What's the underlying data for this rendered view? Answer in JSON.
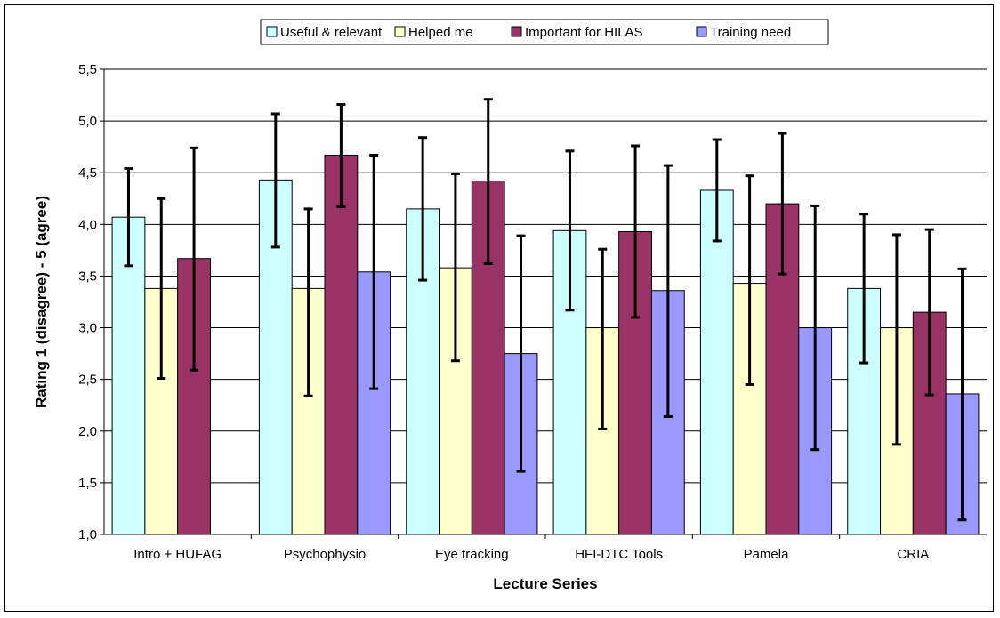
{
  "chart_data": {
    "type": "bar",
    "title": "",
    "xlabel": "Lecture Series",
    "ylabel": "Rating 1 (disagree) - 5 (agree)",
    "ylim": [
      1.0,
      5.5
    ],
    "yticks": [
      "1,0",
      "1,5",
      "2,0",
      "2,5",
      "3,0",
      "3,5",
      "4,0",
      "4,5",
      "5,0",
      "5,5"
    ],
    "ytick_values": [
      1.0,
      1.5,
      2.0,
      2.5,
      3.0,
      3.5,
      4.0,
      4.5,
      5.0,
      5.5
    ],
    "grid": "horizontal",
    "legend_position": "top",
    "categories": [
      "Intro + HUFAG",
      "Psychophysio",
      "Eye tracking",
      "HFI-DTC Tools",
      "Pamela",
      "CRIA"
    ],
    "series": [
      {
        "name": "Useful & relevant",
        "color": "#CCFFFF",
        "values": [
          4.07,
          4.43,
          4.15,
          3.94,
          4.33,
          3.38
        ],
        "error_low": [
          3.6,
          3.78,
          3.46,
          3.17,
          3.84,
          2.66
        ],
        "error_high": [
          4.54,
          5.07,
          4.84,
          4.71,
          4.82,
          4.1
        ]
      },
      {
        "name": "Helped me",
        "color": "#FFFFCC",
        "values": [
          3.38,
          3.38,
          3.58,
          3.0,
          3.43,
          3.0
        ],
        "error_low": [
          2.51,
          2.34,
          2.68,
          2.02,
          2.45,
          1.87
        ],
        "error_high": [
          4.25,
          4.15,
          4.49,
          3.76,
          4.47,
          3.9
        ]
      },
      {
        "name": "Important for HILAS",
        "color": "#993366",
        "values": [
          3.67,
          4.67,
          4.42,
          3.93,
          4.2,
          3.15
        ],
        "error_low": [
          2.59,
          4.17,
          3.62,
          3.1,
          3.52,
          2.35
        ],
        "error_high": [
          4.74,
          5.16,
          5.21,
          4.76,
          4.88,
          3.95
        ]
      },
      {
        "name": "Training need",
        "color": "#9999FF",
        "values": [
          null,
          3.54,
          2.75,
          3.36,
          3.0,
          2.36
        ],
        "error_low": [
          null,
          2.41,
          1.61,
          2.14,
          1.82,
          1.14
        ],
        "error_high": [
          null,
          4.67,
          3.89,
          4.57,
          4.18,
          3.57
        ]
      }
    ]
  }
}
